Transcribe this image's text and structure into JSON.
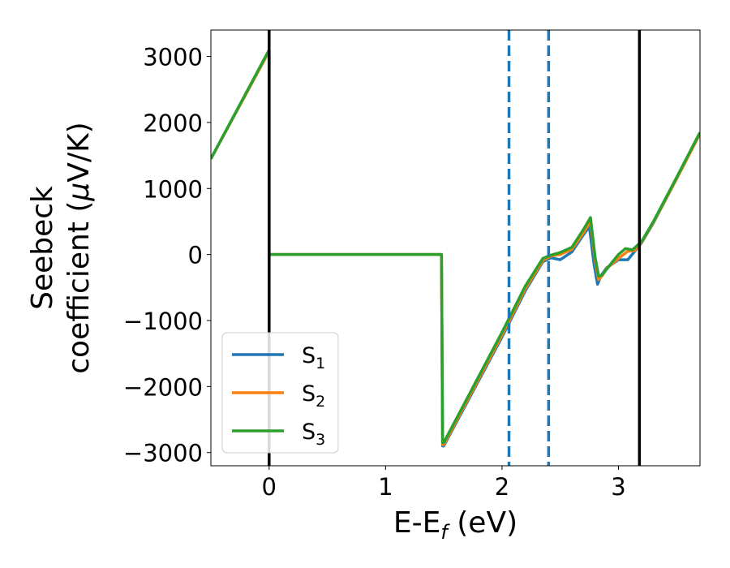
{
  "chart_data": {
    "type": "line",
    "xlabel": "E-E",
    "xlabel_sub": "f",
    "xlabel_unit": " (eV)",
    "ylabel_line1": "Seebeck",
    "ylabel_line2": "coefficient  (",
    "ylabel_mu": "μ",
    "ylabel_unit": "V/K)",
    "xlim": [
      -0.5,
      3.7
    ],
    "ylim": [
      -3200,
      3400
    ],
    "xticks": [
      0,
      1,
      2,
      3
    ],
    "xtick_labels": [
      "0",
      "1",
      "2",
      "3"
    ],
    "yticks": [
      -3000,
      -2000,
      -1000,
      0,
      1000,
      2000,
      3000
    ],
    "ytick_labels": [
      "−3000",
      "−2000",
      "−1000",
      "0",
      "1000",
      "2000",
      "3000"
    ],
    "grid": false,
    "legend_position": "lower-left",
    "vlines": [
      {
        "x": 0.0,
        "style": "solid",
        "color": "#000000"
      },
      {
        "x": 3.18,
        "style": "solid",
        "color": "#000000"
      },
      {
        "x": 2.06,
        "style": "dashed",
        "color": "#1f77b4"
      },
      {
        "x": 2.4,
        "style": "dashed",
        "color": "#1f77b4"
      }
    ],
    "series": [
      {
        "name": "S",
        "sub": "1",
        "color": "#1f77b4",
        "x": [
          -0.5,
          0.0,
          0.0,
          1.48,
          1.49,
          1.5,
          2.0,
          2.2,
          2.35,
          2.42,
          2.5,
          2.6,
          2.7,
          2.75,
          2.79,
          2.82,
          2.85,
          2.9,
          3.0,
          3.08,
          3.14,
          3.2,
          3.3,
          3.5,
          3.7
        ],
        "y": [
          1450,
          3080,
          0,
          0,
          -2900,
          -2900,
          -1250,
          -550,
          -110,
          -50,
          -80,
          40,
          300,
          420,
          -150,
          -450,
          -320,
          -200,
          -80,
          -80,
          50,
          180,
          480,
          1150,
          1830
        ]
      },
      {
        "name": "S",
        "sub": "2",
        "color": "#ff7f0e",
        "x": [
          -0.5,
          0.0,
          0.0,
          1.48,
          1.49,
          1.5,
          2.0,
          2.2,
          2.35,
          2.42,
          2.5,
          2.6,
          2.7,
          2.76,
          2.8,
          2.83,
          2.86,
          2.9,
          3.0,
          3.08,
          3.14,
          3.2,
          3.3,
          3.5,
          3.7
        ],
        "y": [
          1450,
          3080,
          0,
          0,
          -2880,
          -2880,
          -1220,
          -520,
          -90,
          -20,
          0,
          80,
          330,
          500,
          -100,
          -380,
          -320,
          -210,
          -60,
          50,
          60,
          190,
          490,
          1150,
          1830
        ]
      },
      {
        "name": "S",
        "sub": "3",
        "color": "#2ca02c",
        "x": [
          -0.5,
          0.0,
          0.0,
          1.48,
          1.49,
          1.5,
          2.0,
          2.2,
          2.35,
          2.42,
          2.5,
          2.6,
          2.7,
          2.76,
          2.8,
          2.83,
          2.86,
          2.9,
          3.0,
          3.06,
          3.12,
          3.2,
          3.3,
          3.5,
          3.7
        ],
        "y": [
          1450,
          3100,
          0,
          0,
          -2850,
          -2850,
          -1180,
          -480,
          -60,
          -10,
          30,
          110,
          380,
          560,
          -50,
          -330,
          -310,
          -220,
          0,
          90,
          70,
          200,
          500,
          1170,
          1850
        ]
      }
    ]
  }
}
